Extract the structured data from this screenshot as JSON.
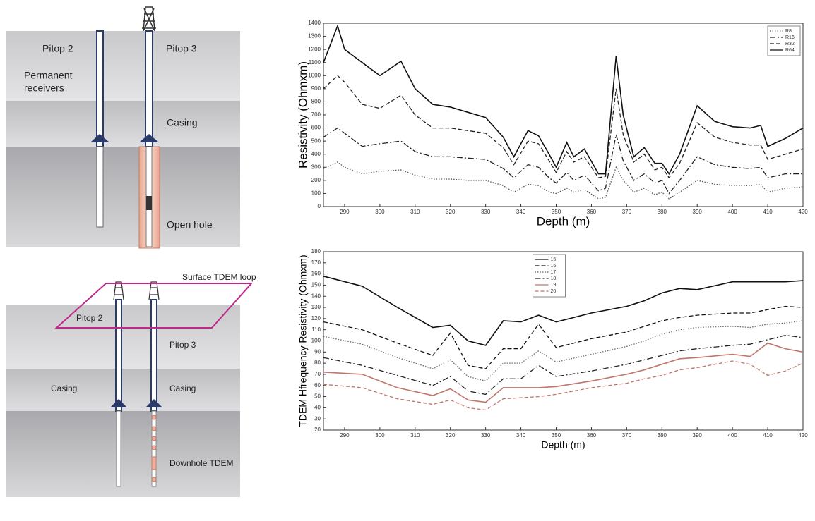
{
  "diagram_top": {
    "pitop2": "Pitop 2",
    "pitop3": "Pitop 3",
    "receivers": [
      "Permanent",
      "receivers"
    ],
    "casing": "Casing",
    "open_hole": "Open hole"
  },
  "diagram_bottom": {
    "loop": "Surface TDEM loop",
    "pitop2": "Pitop 2",
    "pitop3": "Pitop 3",
    "casing_left": "Casing",
    "casing_right": "Casing",
    "downhole": "Downhole TDEM"
  },
  "chart_data": [
    {
      "type": "line",
      "ylabel": "Resistivity (Ohmxm)",
      "xlabel": "Depth (m)",
      "xlim": [
        284,
        420
      ],
      "xticks": [
        290,
        300,
        310,
        320,
        330,
        340,
        350,
        360,
        370,
        380,
        390,
        400,
        410,
        420
      ],
      "ylim": [
        0,
        1400
      ],
      "yticks": [
        0,
        100,
        200,
        300,
        400,
        500,
        600,
        700,
        800,
        900,
        1000,
        1100,
        1200,
        1300,
        1400
      ],
      "legend": "upper right",
      "x": [
        284,
        288,
        290,
        295,
        300,
        306,
        310,
        315,
        320,
        325,
        330,
        335,
        338,
        342,
        345,
        348,
        350,
        353,
        355,
        358,
        362,
        364,
        367,
        369,
        372,
        375,
        378,
        380,
        382,
        385,
        390,
        395,
        400,
        405,
        408,
        410,
        415,
        420
      ],
      "series": [
        {
          "name": "R8",
          "color": "#555555",
          "dash": "1.5,2",
          "values": [
            290,
            340,
            300,
            250,
            270,
            280,
            240,
            210,
            210,
            200,
            200,
            160,
            110,
            170,
            160,
            110,
            100,
            140,
            110,
            130,
            60,
            70,
            300,
            200,
            110,
            140,
            90,
            110,
            60,
            110,
            200,
            170,
            160,
            160,
            170,
            110,
            140,
            150
          ]
        },
        {
          "name": "R16",
          "color": "#222222",
          "dash": "8,3,2,3",
          "values": [
            530,
            600,
            560,
            460,
            480,
            500,
            420,
            380,
            380,
            370,
            360,
            290,
            220,
            320,
            300,
            220,
            180,
            260,
            200,
            240,
            120,
            140,
            550,
            350,
            200,
            250,
            180,
            200,
            100,
            200,
            380,
            320,
            300,
            290,
            300,
            220,
            250,
            250
          ]
        },
        {
          "name": "R32",
          "color": "#222222",
          "dash": "6,3",
          "values": [
            900,
            1000,
            950,
            780,
            750,
            850,
            700,
            600,
            600,
            580,
            560,
            450,
            320,
            500,
            480,
            350,
            260,
            420,
            340,
            380,
            220,
            230,
            900,
            550,
            340,
            400,
            280,
            300,
            220,
            330,
            640,
            530,
            490,
            470,
            470,
            360,
            400,
            440
          ]
        },
        {
          "name": "R64",
          "color": "#111111",
          "dash": "none",
          "values": [
            1100,
            1380,
            1200,
            1100,
            1000,
            1110,
            900,
            780,
            760,
            720,
            680,
            530,
            380,
            580,
            540,
            400,
            300,
            490,
            380,
            440,
            250,
            250,
            1150,
            700,
            380,
            450,
            330,
            330,
            250,
            400,
            770,
            650,
            610,
            600,
            620,
            460,
            520,
            600
          ]
        }
      ]
    },
    {
      "type": "line",
      "ylabel": "TDEM Hfrequency Resistivity (Ohmxm)",
      "xlabel": "Depth (m)",
      "xlim": [
        284,
        420
      ],
      "xticks": [
        290,
        300,
        310,
        320,
        330,
        340,
        350,
        360,
        370,
        380,
        390,
        400,
        410,
        420
      ],
      "ylim": [
        20,
        180
      ],
      "yticks": [
        20,
        30,
        40,
        50,
        60,
        70,
        80,
        90,
        100,
        110,
        120,
        130,
        140,
        150,
        160,
        170,
        180
      ],
      "legend": "upper center",
      "x": [
        284,
        295,
        305,
        315,
        320,
        325,
        330,
        335,
        340,
        345,
        350,
        360,
        370,
        375,
        380,
        385,
        390,
        400,
        405,
        410,
        415,
        420
      ],
      "series": [
        {
          "name": "15",
          "color": "#111111",
          "dash": "none",
          "values": [
            158,
            149,
            130,
            112,
            114,
            100,
            96,
            118,
            117,
            123,
            117,
            125,
            131,
            136,
            143,
            147,
            146,
            153,
            153,
            153,
            153,
            154
          ]
        },
        {
          "name": "16",
          "color": "#111111",
          "dash": "6,3",
          "values": [
            117,
            110,
            98,
            87,
            107,
            78,
            75,
            93,
            93,
            115,
            94,
            102,
            108,
            113,
            118,
            121,
            123,
            125,
            125,
            128,
            131,
            130
          ]
        },
        {
          "name": "17",
          "color": "#666666",
          "dash": "1.5,2",
          "values": [
            104,
            97,
            85,
            75,
            83,
            68,
            64,
            80,
            80,
            91,
            81,
            88,
            95,
            100,
            106,
            110,
            112,
            113,
            112,
            115,
            116,
            118
          ]
        },
        {
          "name": "18",
          "color": "#222222",
          "dash": "8,3,2,3",
          "values": [
            85,
            78,
            69,
            60,
            68,
            55,
            52,
            66,
            66,
            78,
            68,
            73,
            79,
            83,
            87,
            91,
            93,
            96,
            97,
            101,
            105,
            103
          ]
        },
        {
          "name": "19",
          "color": "#c0766a",
          "dash": "none",
          "values": [
            72,
            70,
            58,
            51,
            57,
            47,
            45,
            58,
            58,
            58,
            59,
            64,
            70,
            74,
            79,
            84,
            85,
            88,
            86,
            98,
            93,
            90
          ]
        },
        {
          "name": "20",
          "color": "#c0766a",
          "dash": "5,3",
          "values": [
            61,
            58,
            48,
            43,
            47,
            40,
            38,
            48,
            49,
            50,
            52,
            58,
            62,
            66,
            69,
            74,
            76,
            82,
            79,
            69,
            73,
            80
          ]
        }
      ]
    }
  ]
}
